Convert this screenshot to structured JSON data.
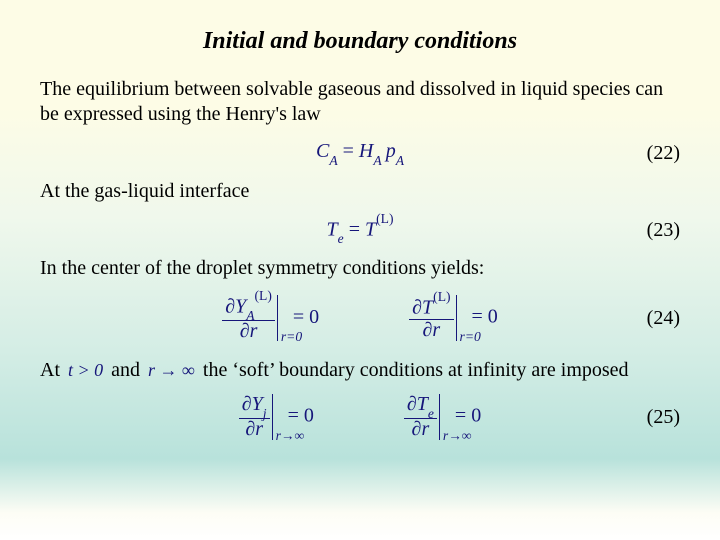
{
  "colors": {
    "text": "#000000",
    "math": "#16167a",
    "bg_top": "#fdfce6",
    "bg_mid": "#d4ede5",
    "bg_bottom": "#ffffff"
  },
  "typography": {
    "title_fontsize": 24,
    "body_fontsize": 20,
    "math_fontsize": 20,
    "font_family": "Times New Roman"
  },
  "title": "Initial and boundary conditions",
  "para1": "The equilibrium between solvable gaseous and dissolved in liquid species can be expressed using the Henry's law",
  "eq22": {
    "lhs_var": "C",
    "lhs_sub": "A",
    "rhs1_var": "H",
    "rhs1_sub": "A",
    "rhs2_var": "p",
    "rhs2_sub": "A",
    "num": "(22)"
  },
  "para2": "At the gas-liquid interface",
  "eq23": {
    "lhs_var": "T",
    "lhs_sub": "e",
    "rhs_var": "T",
    "rhs_sup": "(L)",
    "num": "(23)"
  },
  "para3": "In the center of the droplet symmetry conditions yields:",
  "eq24": {
    "a": {
      "num_d": "∂",
      "num_var": "Y",
      "num_sub": "A",
      "num_sup": "(L)",
      "den_d": "∂",
      "den_var": "r",
      "eval_sub": "r=0",
      "rhs": "= 0"
    },
    "b": {
      "num_d": "∂",
      "num_var": "T",
      "num_sup": "(L)",
      "den_d": "∂",
      "den_var": "r",
      "eval_sub": "r=0",
      "rhs": "= 0"
    },
    "num": "(24)"
  },
  "para4": {
    "at": "At",
    "cond1": "t > 0",
    "and": "and",
    "cond2": "r → ∞",
    "tail": "the ‘soft’ boundary conditions at infinity are imposed"
  },
  "eq25": {
    "a": {
      "num_d": "∂",
      "num_var": "Y",
      "num_sub": "j",
      "den_d": "∂",
      "den_var": "r",
      "eval_sub": "r→∞",
      "rhs": "= 0"
    },
    "b": {
      "num_d": "∂",
      "num_var": "T",
      "num_sub": "e",
      "den_d": "∂",
      "den_var": "r",
      "eval_sub": "r→∞",
      "rhs": "= 0"
    },
    "num": "(25)"
  }
}
